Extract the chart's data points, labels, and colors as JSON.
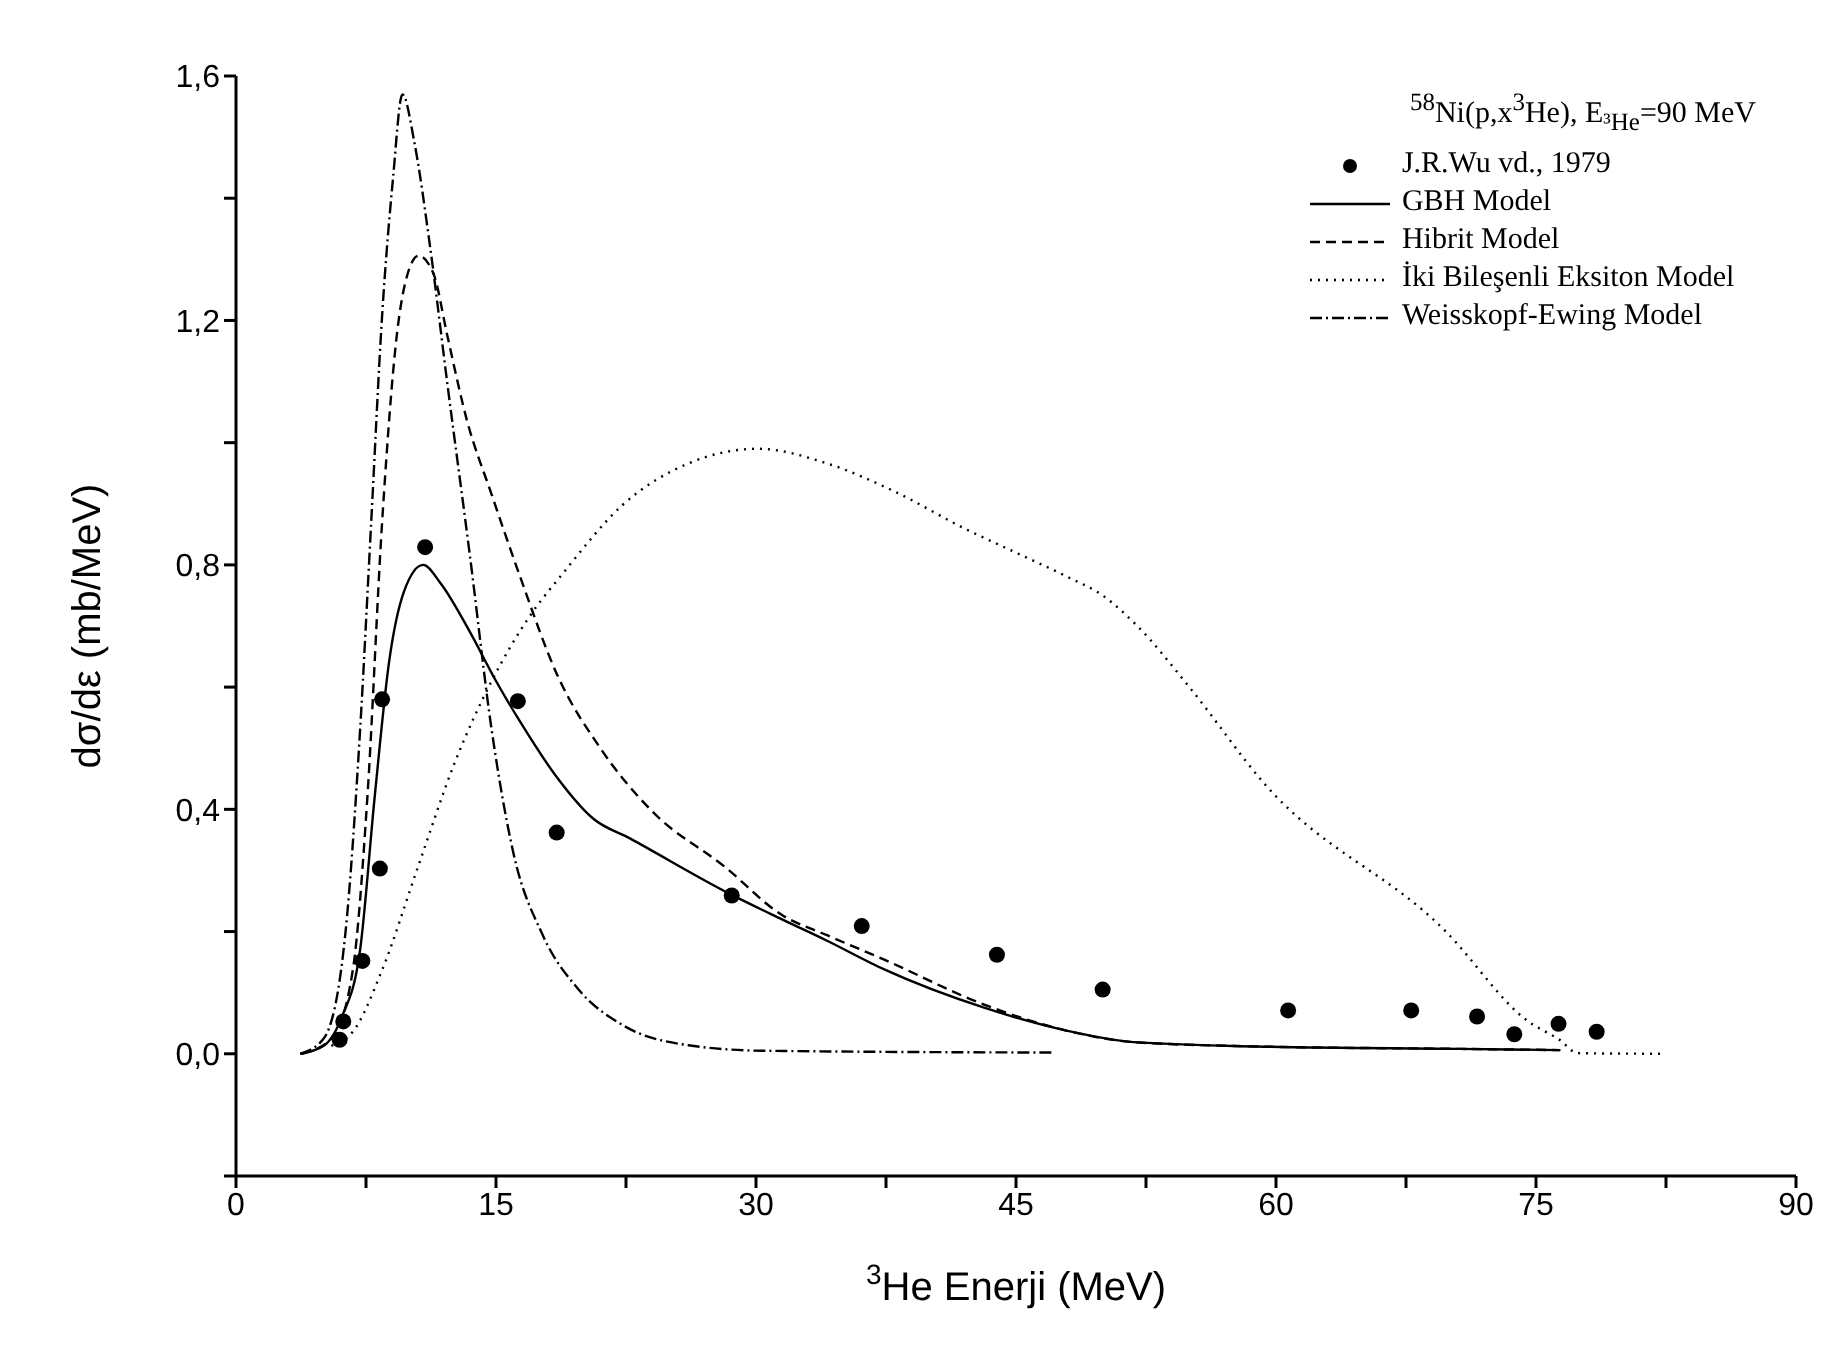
{
  "chart_data": {
    "type": "line",
    "legend_title": "$^{58}$Ni(p,x$^{3}$He), E$_{³He}$=90 MeV",
    "xlabel": "$^{3}$He Enerji (MeV)",
    "ylabel": "dσ/dε (mb/MeV)",
    "xlim": [
      0,
      90
    ],
    "ylim": [
      -0.2,
      1.6
    ],
    "xticks": [
      0,
      {
        "value": 7.5,
        "label": null
      },
      15,
      {
        "value": 22.5,
        "label": null
      },
      30,
      {
        "value": 37.5,
        "label": null
      },
      45,
      {
        "value": 52.5,
        "label": null
      },
      60,
      {
        "value": 67.5,
        "label": null
      },
      75,
      {
        "value": 82.5,
        "label": null
      },
      90
    ],
    "yticks": [
      {
        "value": -0.2,
        "label": null
      },
      {
        "value": 0,
        "label": "0,0"
      },
      {
        "value": 0.2,
        "label": null
      },
      {
        "value": 0.4,
        "label": "0,4"
      },
      {
        "value": 0.6,
        "label": null
      },
      {
        "value": 0.8,
        "label": "0,8"
      },
      {
        "value": 1.0,
        "label": null
      },
      {
        "value": 1.2,
        "label": "1,2"
      },
      {
        "value": 1.4,
        "label": null
      },
      {
        "value": 1.6,
        "label": "1,6"
      }
    ],
    "grid": false,
    "legend": "top right",
    "series": [
      {
        "name": "J.R.Wu vd., 1979",
        "type": "scatter",
        "marker": "circle",
        "color": "#000000",
        "x": [
          5.98,
          6.19,
          7.29,
          8.3,
          8.43,
          10.91,
          16.26,
          18.5,
          28.6,
          36.1,
          43.9,
          50.0,
          60.7,
          67.8,
          71.6,
          73.75,
          76.3,
          78.5
        ],
        "values": [
          0.023,
          0.053,
          0.152,
          0.303,
          0.58,
          0.829,
          0.577,
          0.362,
          0.259,
          0.209,
          0.162,
          0.105,
          0.071,
          0.071,
          0.061,
          0.032,
          0.049,
          0.036
        ]
      },
      {
        "name": "GBH Model",
        "line_style": "solid",
        "marker": "none",
        "color": "#000000",
        "x": [
          3.7,
          5.06,
          6.1,
          7.16,
          8.0,
          8.85,
          9.7,
          10.8,
          11.8,
          13.5,
          15.0,
          16.4,
          18.5,
          20.6,
          22.75,
          28.6,
          31.5,
          34.1,
          37.4,
          43.2,
          47.9,
          51.8,
          58.9,
          70.6,
          76.4
        ],
        "values": [
          0,
          0.013,
          0.06,
          0.17,
          0.42,
          0.645,
          0.757,
          0.8,
          0.77,
          0.69,
          0.61,
          0.543,
          0.453,
          0.385,
          0.352,
          0.26,
          0.22,
          0.185,
          0.138,
          0.075,
          0.038,
          0.019,
          0.012,
          0.008,
          0.006
        ]
      },
      {
        "name": "Hibrit Model",
        "line_style": "dashed",
        "marker": "none",
        "color": "#000000",
        "x": [
          3.8,
          5.5,
          6.74,
          7.58,
          8.43,
          9.27,
          9.9,
          10.53,
          11.4,
          12.2,
          13.3,
          14.75,
          16.4,
          18.5,
          21.07,
          24.0,
          28.2,
          31.5,
          34.1,
          37.4,
          43.2,
          47.9,
          51.8,
          58.9,
          70.6,
          76.4
        ],
        "values": [
          0,
          0.025,
          0.137,
          0.42,
          0.87,
          1.174,
          1.276,
          1.306,
          1.276,
          1.174,
          1.039,
          0.915,
          0.78,
          0.622,
          0.498,
          0.397,
          0.306,
          0.227,
          0.194,
          0.154,
          0.08,
          0.038,
          0.019,
          0.012,
          0.008,
          0.006
        ]
      },
      {
        "name": "İki Bileşenli Eksiton Model",
        "line_style": "dotted",
        "marker": "none",
        "color": "#000000",
        "x": [
          5.5,
          6.74,
          8.43,
          10.5,
          12.6,
          14.75,
          16.85,
          19.0,
          22.3,
          26.1,
          30.1,
          34.1,
          38.0,
          42.0,
          45.0,
          48.0,
          50.0,
          52.0,
          55.0,
          59.3,
          69.8,
          74.5,
          76.4,
          77.4,
          82.3
        ],
        "values": [
          0.013,
          0.036,
          0.137,
          0.306,
          0.475,
          0.61,
          0.712,
          0.791,
          0.898,
          0.966,
          0.99,
          0.966,
          0.92,
          0.86,
          0.82,
          0.78,
          0.75,
          0.7,
          0.6,
          0.443,
          0.2,
          0.054,
          0.022,
          0.001,
          0
        ]
      },
      {
        "name": "Weisskopf-Ewing Model",
        "line_style": "dashdot",
        "marker": "none",
        "color": "#000000",
        "x": [
          3.7,
          5.06,
          6.3,
          7.16,
          7.8,
          8.43,
          9.06,
          9.6,
          10.3,
          11.2,
          12.2,
          13.5,
          14.75,
          16.0,
          17.7,
          19.8,
          22.3,
          26.1,
          30.3,
          47.1
        ],
        "values": [
          0,
          0.025,
          0.194,
          0.53,
          0.87,
          1.208,
          1.433,
          1.57,
          1.49,
          1.32,
          1.095,
          0.814,
          0.53,
          0.329,
          0.194,
          0.104,
          0.047,
          0.014,
          0.005,
          0.002
        ]
      }
    ]
  }
}
